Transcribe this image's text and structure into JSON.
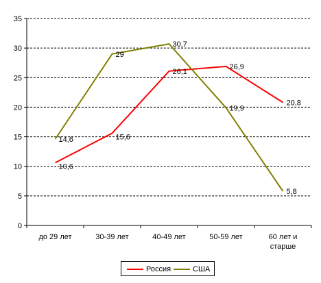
{
  "chart_data": {
    "type": "line",
    "categories": [
      "до 29 лет",
      "30-39 лет",
      "40-49 лет",
      "50-59 лет",
      [
        "60 лет и",
        "старше"
      ]
    ],
    "series": [
      {
        "name": "Россия",
        "values": [
          10.6,
          15.6,
          26.1,
          26.9,
          20.8
        ],
        "labels": [
          "10,6",
          "15,6",
          "26,1",
          "26,9",
          "20,8"
        ],
        "color": "#ff0000"
      },
      {
        "name": "США",
        "values": [
          14.6,
          29,
          30.7,
          19.9,
          5.8
        ],
        "labels": [
          "14,6",
          "29",
          "30,7",
          "19,9",
          "5,8"
        ],
        "color": "#808000"
      }
    ],
    "yticks": [
      "0",
      "5",
      "10",
      "15",
      "20",
      "25",
      "30",
      "35"
    ],
    "ylim": [
      0,
      35
    ],
    "grid": true,
    "legend": "bottom"
  },
  "legend": {
    "items": [
      {
        "label": "Россия",
        "color": "#ff0000"
      },
      {
        "label": "США",
        "color": "#808000"
      }
    ]
  }
}
